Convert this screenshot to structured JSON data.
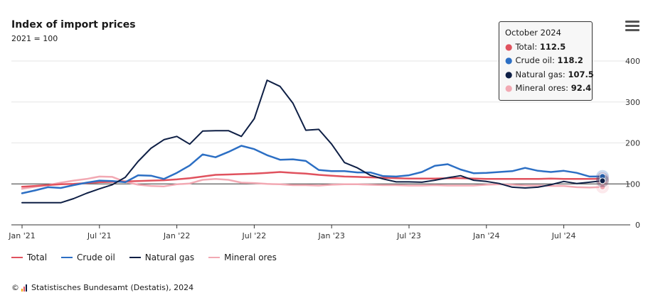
{
  "title": "Index of import prices",
  "subtitle": "2021 = 100",
  "menu_icon": "hamburger-menu-icon",
  "tooltip": {
    "heading": "October 2024",
    "rows": [
      {
        "label": "Total:",
        "value": "112.5"
      },
      {
        "label": "Crude oil:",
        "value": "118.2"
      },
      {
        "label": "Natural gas:",
        "value": "107.5"
      },
      {
        "label": "Mineral ores:",
        "value": "92.4"
      }
    ]
  },
  "legend": [
    {
      "label": "Total",
      "color": "#e0525e"
    },
    {
      "label": "Crude oil",
      "color": "#2c6fc4"
    },
    {
      "label": "Natural gas",
      "color": "#0e1f45"
    },
    {
      "label": "Mineral ores",
      "color": "#f2a9b3"
    }
  ],
  "credit": {
    "copyright": "©",
    "text": "Statistisches Bundesamt (Destatis), 2024"
  },
  "chart_data": {
    "type": "line",
    "title": "Index of import prices",
    "subtitle": "2021 = 100",
    "xlabel": "",
    "ylabel": "",
    "ylim": [
      0,
      400
    ],
    "yticks": [
      0,
      100,
      200,
      300,
      400
    ],
    "reference_line": 100,
    "x": [
      "2021-01",
      "2021-02",
      "2021-03",
      "2021-04",
      "2021-05",
      "2021-06",
      "2021-07",
      "2021-08",
      "2021-09",
      "2021-10",
      "2021-11",
      "2021-12",
      "2022-01",
      "2022-02",
      "2022-03",
      "2022-04",
      "2022-05",
      "2022-06",
      "2022-07",
      "2022-08",
      "2022-09",
      "2022-10",
      "2022-11",
      "2022-12",
      "2023-01",
      "2023-02",
      "2023-03",
      "2023-04",
      "2023-05",
      "2023-06",
      "2023-07",
      "2023-08",
      "2023-09",
      "2023-10",
      "2023-11",
      "2023-12",
      "2024-01",
      "2024-02",
      "2024-03",
      "2024-04",
      "2024-05",
      "2024-06",
      "2024-07",
      "2024-08",
      "2024-09",
      "2024-10"
    ],
    "x_tick_labels": [
      "Jan '21",
      "Jul '21",
      "Jan '22",
      "Jul '22",
      "Jan '23",
      "Jul '23",
      "Jan '24",
      "Jul '24"
    ],
    "x_tick_indices": [
      0,
      6,
      12,
      18,
      24,
      30,
      36,
      42
    ],
    "series": [
      {
        "name": "Total",
        "color": "#e0525e",
        "values": [
          93,
          95,
          97,
          99,
          100,
          102,
          104,
          105,
          106,
          107,
          108,
          109,
          111,
          114,
          118,
          122,
          123,
          124,
          125,
          127,
          129,
          127,
          125,
          122,
          120,
          118,
          117,
          116,
          115,
          114,
          113,
          113,
          113,
          114,
          114,
          113,
          112,
          112,
          112,
          112,
          112,
          113,
          112,
          112,
          112,
          112.5
        ]
      },
      {
        "name": "Crude oil",
        "color": "#2c6fc4",
        "values": [
          77,
          84,
          92,
          90,
          97,
          103,
          108,
          107,
          104,
          121,
          120,
          112,
          127,
          145,
          172,
          165,
          178,
          193,
          185,
          170,
          159,
          160,
          156,
          134,
          131,
          131,
          128,
          128,
          119,
          118,
          121,
          129,
          144,
          148,
          135,
          126,
          127,
          129,
          131,
          139,
          132,
          129,
          132,
          127,
          118,
          118.2
        ]
      },
      {
        "name": "Natural gas",
        "color": "#0e1f45",
        "values": [
          54,
          54,
          54,
          54,
          64,
          77,
          88,
          98,
          116,
          155,
          187,
          208,
          216,
          197,
          229,
          230,
          230,
          216,
          259,
          353,
          338,
          297,
          231,
          233,
          197,
          152,
          139,
          121,
          112,
          105,
          105,
          104,
          109,
          115,
          120,
          109,
          106,
          101,
          92,
          90,
          92,
          98,
          106,
          101,
          104,
          107.5
        ]
      },
      {
        "name": "Mineral ores",
        "color": "#f2a9b3",
        "values": [
          88,
          93,
          97,
          103,
          108,
          112,
          118,
          117,
          105,
          98,
          95,
          94,
          99,
          101,
          110,
          112,
          110,
          103,
          102,
          100,
          99,
          97,
          97,
          96,
          98,
          99,
          99,
          98,
          97,
          97,
          96,
          96,
          97,
          96,
          96,
          96,
          98,
          99,
          98,
          96,
          96,
          95,
          95,
          92,
          91,
          92.4
        ]
      }
    ]
  }
}
